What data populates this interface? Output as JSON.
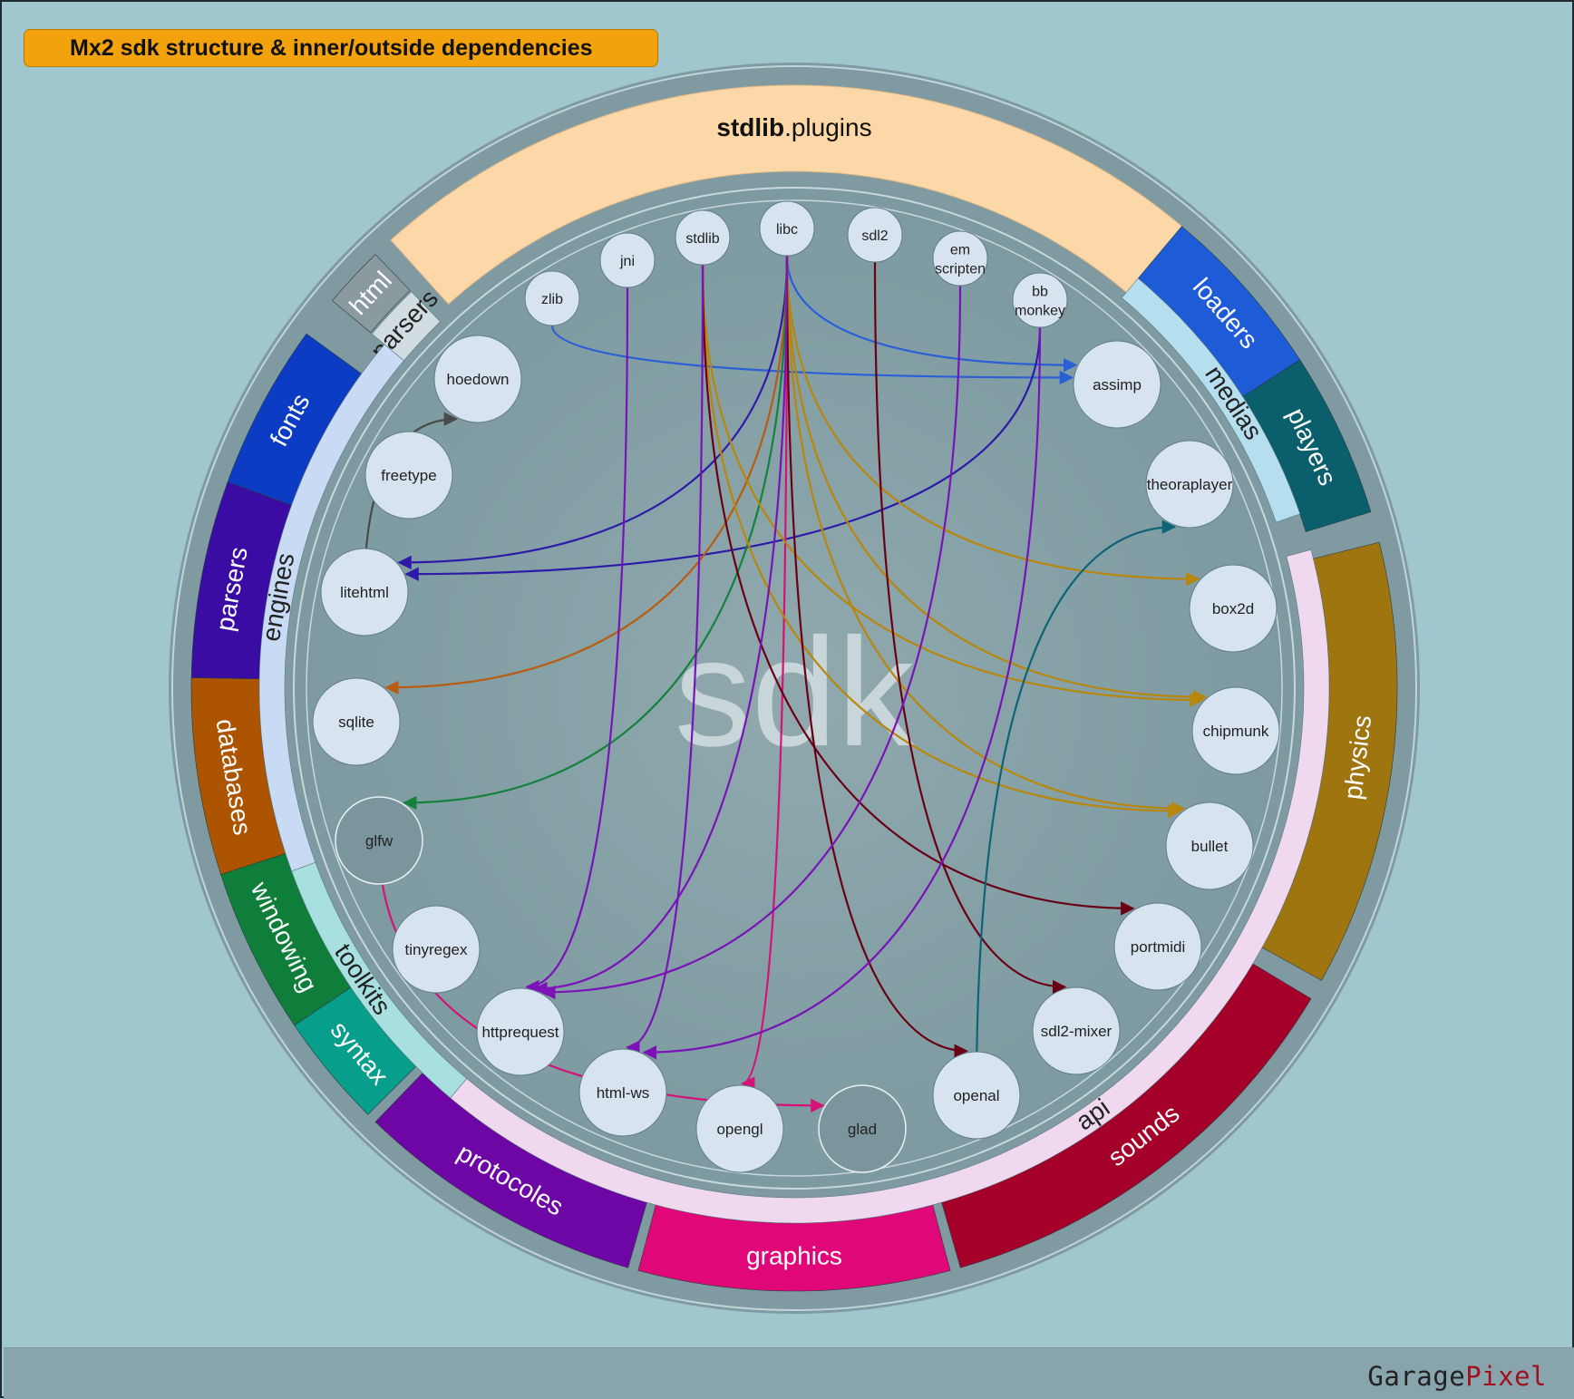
{
  "title": "Mx2 sdk structure & inner/outside dependencies",
  "center_watermark": "sdk",
  "brand": {
    "part1": "Garage",
    "part2": "Pixel"
  },
  "top_band": {
    "bold": "stdlib",
    "rest": ".plugins"
  },
  "outer_ring": [
    {
      "name": "html-seg",
      "label": "html",
      "color": "#8a9a9e",
      "text_color": "#ffffff"
    },
    {
      "name": "loaders-seg",
      "label": "loaders",
      "color": "#1e5bd6",
      "text_color": "#ffffff"
    },
    {
      "name": "players-seg",
      "label": "players",
      "color": "#0b5e6c",
      "text_color": "#ffffff"
    },
    {
      "name": "physics-seg",
      "label": "physics",
      "color": "#9f7510",
      "text_color": "#ffffff"
    },
    {
      "name": "sounds-seg",
      "label": "sounds",
      "color": "#a4002a",
      "text_color": "#ffffff"
    },
    {
      "name": "graphics-seg",
      "label": "graphics",
      "color": "#e00878",
      "text_color": "#ffffff"
    },
    {
      "name": "protocoles-seg",
      "label": "protocoles",
      "color": "#6e06a6",
      "text_color": "#ffffff"
    },
    {
      "name": "syntax-seg",
      "label": "syntax",
      "color": "#079e8c",
      "text_color": "#ffffff"
    },
    {
      "name": "windowing-seg",
      "label": "windowing",
      "color": "#0e7e3a",
      "text_color": "#ffffff"
    },
    {
      "name": "databases-seg",
      "label": "databases",
      "color": "#ad5400",
      "text_color": "#ffffff"
    },
    {
      "name": "parsers-outer-seg",
      "label": "parsers",
      "color": "#3b0ca4",
      "text_color": "#ffffff"
    },
    {
      "name": "fonts-seg",
      "label": "fonts",
      "color": "#0c3cc4",
      "text_color": "#ffffff"
    }
  ],
  "middle_ring": [
    {
      "name": "parsers-inner-seg",
      "label": "parsers",
      "color": "#d2dde2"
    },
    {
      "name": "medias-seg",
      "label": "medias",
      "color": "#b5dfee"
    },
    {
      "name": "api-seg",
      "label": "api",
      "color": "#f0d8ee"
    },
    {
      "name": "toolkits-seg",
      "label": "toolkits",
      "color": "#a8e0e0"
    },
    {
      "name": "engines-seg",
      "label": "engines",
      "color": "#c8daf4"
    }
  ],
  "top_nodes": [
    {
      "name": "zlib",
      "label": "zlib"
    },
    {
      "name": "jni",
      "label": "jni"
    },
    {
      "name": "stdlib",
      "label": "stdlib"
    },
    {
      "name": "libc",
      "label": "libc"
    },
    {
      "name": "sdl2",
      "label": "sdl2"
    },
    {
      "name": "emscripten",
      "label": "em\nscripten"
    },
    {
      "name": "bbmonkey",
      "label": "bb\nmonkey"
    }
  ],
  "nodes": [
    {
      "name": "hoedown",
      "label": "hoedown"
    },
    {
      "name": "freetype",
      "label": "freetype"
    },
    {
      "name": "litehtml",
      "label": "litehtml"
    },
    {
      "name": "sqlite",
      "label": "sqlite"
    },
    {
      "name": "glfw",
      "label": "glfw"
    },
    {
      "name": "tinyregex",
      "label": "tinyregex"
    },
    {
      "name": "httprequest",
      "label": "httprequest"
    },
    {
      "name": "html-ws",
      "label": "html-ws"
    },
    {
      "name": "opengl",
      "label": "opengl"
    },
    {
      "name": "glad",
      "label": "glad"
    },
    {
      "name": "openal",
      "label": "openal"
    },
    {
      "name": "sdl2-mixer",
      "label": "sdl2-mixer"
    },
    {
      "name": "portmidi",
      "label": "portmidi"
    },
    {
      "name": "bullet",
      "label": "bullet"
    },
    {
      "name": "chipmunk",
      "label": "chipmunk"
    },
    {
      "name": "box2d",
      "label": "box2d"
    },
    {
      "name": "theoraplayer",
      "label": "theoraplayer"
    },
    {
      "name": "assimp",
      "label": "assimp"
    }
  ],
  "links": [
    {
      "from": "zlib",
      "to": "assimp",
      "color": "#2a5fd6"
    },
    {
      "from": "libc",
      "to": "assimp",
      "color": "#2a5fd6"
    },
    {
      "from": "libc",
      "to": "litehtml",
      "color": "#2e1aa8"
    },
    {
      "from": "bbmonkey",
      "to": "litehtml",
      "color": "#2e1aa8"
    },
    {
      "from": "litehtml",
      "to": "hoedown",
      "color": "#4a4a4a"
    },
    {
      "from": "libc",
      "to": "sqlite",
      "color": "#b85c12"
    },
    {
      "from": "libc",
      "to": "glfw",
      "color": "#14813d"
    },
    {
      "from": "glfw",
      "to": "glad",
      "color": "#d4127a"
    },
    {
      "from": "libc",
      "to": "opengl",
      "color": "#d4127a"
    },
    {
      "from": "libc",
      "to": "box2d",
      "color": "#b8860b"
    },
    {
      "from": "libc",
      "to": "chipmunk",
      "color": "#b8860b"
    },
    {
      "from": "stdlib",
      "to": "chipmunk",
      "color": "#b8860b"
    },
    {
      "from": "libc",
      "to": "bullet",
      "color": "#b8860b"
    },
    {
      "from": "stdlib",
      "to": "bullet",
      "color": "#b8860b"
    },
    {
      "from": "stdlib",
      "to": "portmidi",
      "color": "#6a0015"
    },
    {
      "from": "sdl2",
      "to": "sdl2-mixer",
      "color": "#6a0015"
    },
    {
      "from": "libc",
      "to": "openal",
      "color": "#6a0015"
    },
    {
      "from": "openal",
      "to": "theoraplayer",
      "color": "#0d6476"
    },
    {
      "from": "jni",
      "to": "httprequest",
      "color": "#7a12b8"
    },
    {
      "from": "stdlib",
      "to": "html-ws",
      "color": "#7a12b8"
    },
    {
      "from": "libc",
      "to": "httprequest",
      "color": "#7a12b8"
    },
    {
      "from": "emscripten",
      "to": "httprequest",
      "color": "#7a12b8"
    },
    {
      "from": "bbmonkey",
      "to": "html-ws",
      "color": "#7a12b8"
    }
  ]
}
